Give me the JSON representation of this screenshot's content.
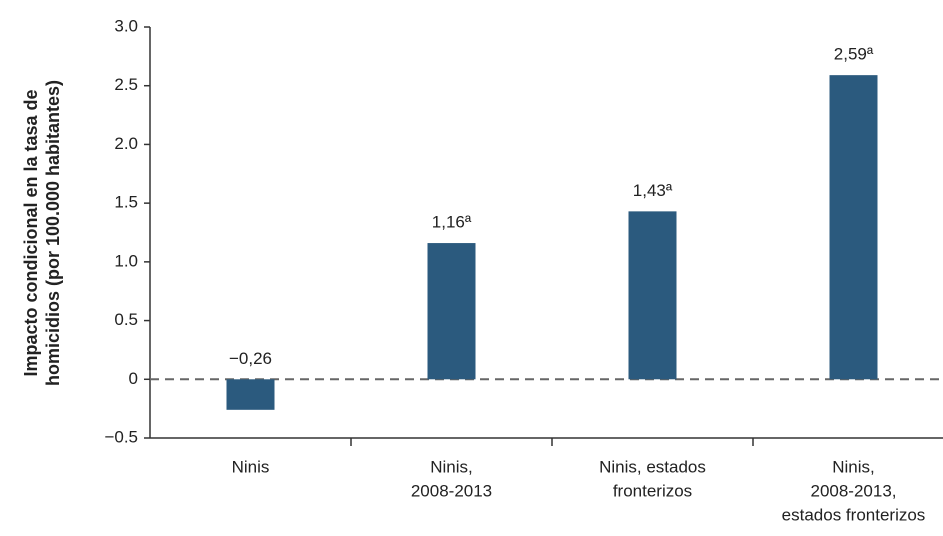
{
  "chart_data": {
    "type": "bar",
    "y_label": [
      "Impacto condicional en la tasa de",
      "homicidios (por 100.000 habitantes)"
    ],
    "categories": [
      [
        "Ninis"
      ],
      [
        "Ninis,",
        "2008-2013"
      ],
      [
        "Ninis, estados",
        "fronterizos"
      ],
      [
        "Ninis,",
        "2008-2013,",
        "estados fronterizos"
      ]
    ],
    "values": [
      -0.26,
      1.16,
      1.43,
      2.59
    ],
    "value_labels": [
      "−0,26",
      "1,16ª",
      "1,43ª",
      "2,59ª"
    ],
    "color": "#2b5a7e",
    "ylim": [
      -0.5,
      3.0
    ],
    "yticks": [
      {
        "value": -0.5,
        "label": "−0.5"
      },
      0,
      {
        "value": 0.5,
        "label": "0.5"
      },
      {
        "value": 1.0,
        "label": "1.0"
      },
      {
        "value": 1.5,
        "label": "1.5"
      },
      {
        "value": 2.0,
        "label": "2.0"
      },
      {
        "value": 2.5,
        "label": "2.5"
      },
      {
        "value": 3.0,
        "label": "3.0"
      }
    ]
  }
}
